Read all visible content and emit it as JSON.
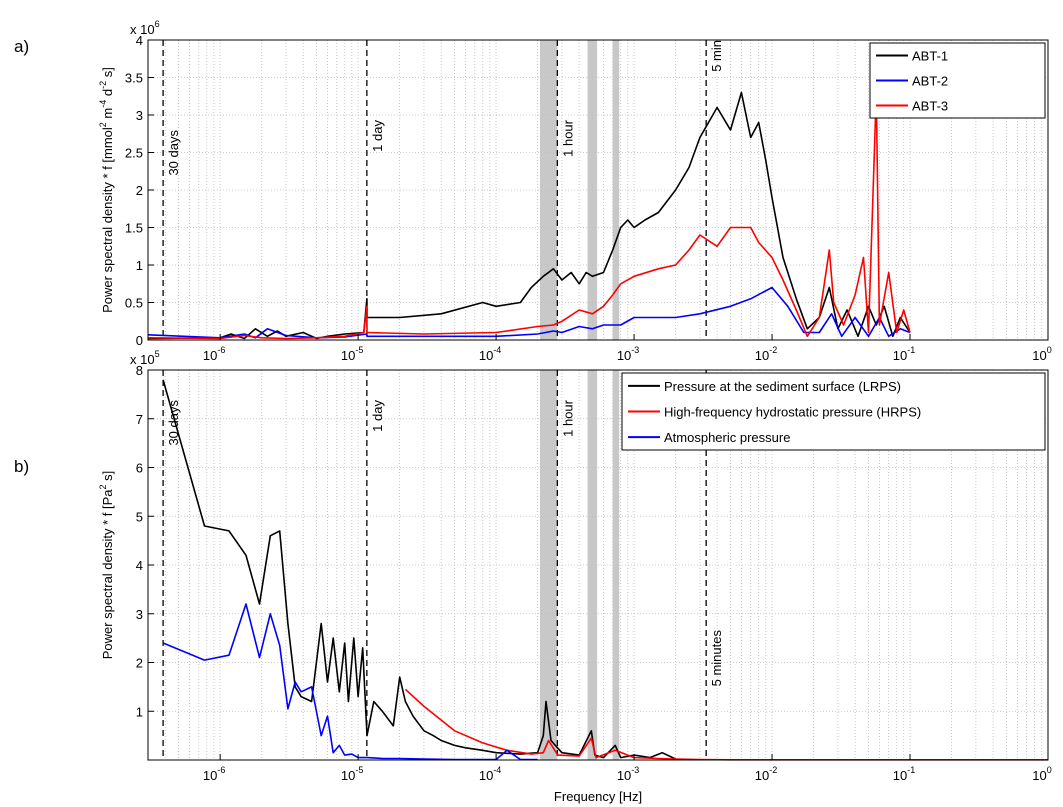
{
  "panel_labels": [
    "a)",
    "b)"
  ],
  "chart_data": [
    {
      "type": "line",
      "panel": "a)",
      "ylabel_main": "Power spectral density * f [mmol",
      "ylabel_parts": [
        {
          "t": "Power spectral density * f [mmol",
          "sup": false
        },
        {
          "t": "2",
          "sup": true
        },
        {
          "t": " m",
          "sup": false
        },
        {
          "t": "-4",
          "sup": true
        },
        {
          "t": " d",
          "sup": false
        },
        {
          "t": "-2",
          "sup": true
        },
        {
          "t": " s]",
          "sup": false
        }
      ],
      "xlabel": "",
      "x_scale": "log",
      "xlim": [
        3e-07,
        1
      ],
      "ylim": [
        0,
        4000000
      ],
      "y_multiplier": "x 10",
      "y_multiplier_exp": "6",
      "y_ticks": [
        0,
        0.5,
        1,
        1.5,
        2,
        2.5,
        3,
        3.5,
        4
      ],
      "x_tick_exps": [
        "-6",
        "-5",
        "-4",
        "-3",
        "-2",
        "-1",
        "0"
      ],
      "grid": true,
      "legend_position": "top-right",
      "shaded_bands": [
        [
          0.000208,
          0.000278
        ],
        [
          0.00046,
          0.00054
        ],
        [
          0.0007,
          0.00078
        ]
      ],
      "annotations": [
        {
          "label": "30 days",
          "x": 3.86e-07
        },
        {
          "label": "1 day",
          "x": 1.157e-05
        },
        {
          "label": "1 hour",
          "x": 0.000278
        },
        {
          "label": "5 min",
          "x": 0.00333
        }
      ],
      "series": [
        {
          "name": "ABT-1",
          "color": "#000000",
          "x": [
            3e-07,
            1e-06,
            1.2e-06,
            1.5e-06,
            1.8e-06,
            2.2e-06,
            2.6e-06,
            3e-06,
            4e-06,
            5e-06,
            6e-06,
            8e-06,
            1.1e-05,
            1.157e-05,
            1.16e-05,
            2e-05,
            4e-05,
            8e-05,
            0.0001,
            0.00015,
            0.00018,
            0.00022,
            0.00026,
            0.0003,
            0.00035,
            0.0004,
            0.00045,
            0.0005,
            0.0006,
            0.0007,
            0.0008,
            0.0009,
            0.001,
            0.0012,
            0.0015,
            0.002,
            0.0025,
            0.003,
            0.004,
            0.005,
            0.006,
            0.007,
            0.008,
            0.009,
            0.01,
            0.012,
            0.015,
            0.018,
            0.022,
            0.026,
            0.03,
            0.035,
            0.042,
            0.05,
            0.057,
            0.065,
            0.075,
            0.085,
            0.1
          ],
          "y": [
            0.02,
            0.03,
            0.08,
            0.02,
            0.15,
            0.05,
            0.12,
            0.05,
            0.1,
            0.02,
            0.05,
            0.08,
            0.1,
            0.55,
            0.3,
            0.3,
            0.35,
            0.5,
            0.45,
            0.5,
            0.7,
            0.85,
            0.95,
            0.8,
            0.9,
            0.75,
            0.9,
            0.85,
            0.9,
            1.2,
            1.5,
            1.6,
            1.5,
            1.6,
            1.7,
            2.0,
            2.3,
            2.7,
            3.1,
            2.8,
            3.3,
            2.7,
            2.9,
            2.4,
            1.9,
            1.1,
            0.55,
            0.15,
            0.3,
            0.7,
            0.15,
            0.4,
            0.05,
            0.45,
            0.2,
            0.45,
            0.05,
            0.3,
            0.1
          ]
        },
        {
          "name": "ABT-2",
          "color": "#0000ff",
          "x": [
            3e-07,
            1e-06,
            1.5e-06,
            1.8e-06,
            2.2e-06,
            3e-06,
            5e-06,
            8e-06,
            1.157e-05,
            1.16e-05,
            5e-05,
            0.0001,
            0.0002,
            0.00026,
            0.0003,
            0.0004,
            0.0005,
            0.0006,
            0.0008,
            0.001,
            0.0015,
            0.002,
            0.003,
            0.005,
            0.007,
            0.01,
            0.013,
            0.017,
            0.022,
            0.027,
            0.032,
            0.04,
            0.05,
            0.06,
            0.07,
            0.085,
            0.1
          ],
          "y": [
            0.07,
            0.03,
            0.08,
            0.03,
            0.15,
            0.06,
            0.03,
            0.04,
            0.08,
            0.05,
            0.05,
            0.05,
            0.08,
            0.12,
            0.1,
            0.18,
            0.15,
            0.2,
            0.2,
            0.3,
            0.3,
            0.3,
            0.35,
            0.45,
            0.55,
            0.7,
            0.45,
            0.1,
            0.1,
            0.35,
            0.05,
            0.3,
            0.05,
            0.3,
            0.05,
            0.15,
            0.1
          ]
        },
        {
          "name": "ABT-3",
          "color": "#ff0000",
          "x": [
            3e-07,
            1e-06,
            1.5e-06,
            2e-06,
            3e-06,
            5e-06,
            8e-06,
            1.1e-05,
            1.157e-05,
            1.16e-05,
            3e-05,
            0.0001,
            0.0002,
            0.00026,
            0.0003,
            0.0004,
            0.0005,
            0.0006,
            0.0007,
            0.0008,
            0.001,
            0.0015,
            0.002,
            0.0025,
            0.003,
            0.004,
            0.005,
            0.007,
            0.008,
            0.01,
            0.012,
            0.015,
            0.018,
            0.022,
            0.026,
            0.028,
            0.033,
            0.04,
            0.046,
            0.05,
            0.057,
            0.06,
            0.07,
            0.08,
            0.09,
            0.1
          ],
          "y": [
            0.03,
            0.02,
            0.06,
            0.03,
            0.02,
            0.03,
            0.05,
            0.1,
            0.45,
            0.1,
            0.08,
            0.1,
            0.18,
            0.2,
            0.25,
            0.4,
            0.35,
            0.45,
            0.6,
            0.75,
            0.85,
            0.95,
            1.0,
            1.2,
            1.4,
            1.25,
            1.5,
            1.5,
            1.3,
            1.1,
            0.8,
            0.4,
            0.05,
            0.3,
            1.2,
            0.5,
            0.2,
            0.6,
            1.1,
            0.1,
            3.3,
            0.2,
            0.9,
            0.1,
            0.4,
            0.1
          ]
        }
      ]
    },
    {
      "type": "line",
      "panel": "b)",
      "ylabel_parts": [
        {
          "t": "Power spectral density * f [Pa",
          "sup": false
        },
        {
          "t": "2",
          "sup": true
        },
        {
          "t": " s]",
          "sup": false
        }
      ],
      "xlabel": "Frequency [Hz]",
      "x_scale": "log",
      "xlim": [
        3e-07,
        1
      ],
      "ylim": [
        0,
        800000
      ],
      "y_multiplier": "x 10",
      "y_multiplier_exp": "5",
      "y_ticks": [
        1,
        2,
        3,
        4,
        5,
        6,
        7,
        8
      ],
      "x_tick_exps": [
        "-6",
        "-5",
        "-4",
        "-3",
        "-2",
        "-1",
        "0"
      ],
      "grid": true,
      "legend_position": "top-right",
      "shaded_bands": [
        [
          0.000208,
          0.000278
        ],
        [
          0.00046,
          0.00054
        ],
        [
          0.0007,
          0.00078
        ]
      ],
      "annotations": [
        {
          "label": "30 days",
          "x": 3.86e-07
        },
        {
          "label": "1 day",
          "x": 1.157e-05
        },
        {
          "label": "1 hour",
          "x": 0.000278
        },
        {
          "label": "5 minutes",
          "x": 0.00333
        }
      ],
      "series": [
        {
          "name": "Pressure at the sediment surface (LRPS)",
          "color": "#000000",
          "x": [
            3.86e-07,
            7.7e-07,
            1.16e-06,
            1.54e-06,
            1.93e-06,
            2.31e-06,
            2.7e-06,
            3.1e-06,
            3.5e-06,
            3.86e-06,
            4.6e-06,
            5.4e-06,
            6e-06,
            6.6e-06,
            7.3e-06,
            8e-06,
            8.5e-06,
            9.3e-06,
            1e-05,
            1.08e-05,
            1.16e-05,
            1.3e-05,
            1.5e-05,
            1.8e-05,
            2e-05,
            2.2e-05,
            2.5e-05,
            3e-05,
            3.5e-05,
            4e-05,
            5e-05,
            6e-05,
            8e-05,
            0.0001,
            0.00015,
            0.0002,
            0.00022,
            0.00023,
            0.00025,
            0.0003,
            0.0004,
            0.00049,
            0.00052,
            0.0006,
            0.00073,
            0.0008,
            0.001,
            0.0013,
            0.0016,
            0.002
          ],
          "y": [
            7.8,
            4.8,
            4.7,
            4.2,
            3.2,
            4.6,
            4.7,
            2.8,
            1.5,
            1.3,
            1.2,
            2.8,
            1.6,
            2.5,
            1.4,
            2.4,
            1.2,
            2.5,
            1.3,
            2.3,
            0.5,
            1.2,
            1.0,
            0.7,
            1.7,
            1.2,
            0.9,
            0.6,
            0.5,
            0.4,
            0.3,
            0.25,
            0.2,
            0.15,
            0.12,
            0.15,
            0.5,
            1.2,
            0.4,
            0.15,
            0.1,
            0.6,
            0.1,
            0.05,
            0.3,
            0.05,
            0.1,
            0.05,
            0.15,
            0.02
          ]
        },
        {
          "name": "High-frequency hydrostatic pressure (HRPS)",
          "color": "#ff0000",
          "x": [
            2.2e-05,
            3e-05,
            5e-05,
            8e-05,
            0.00012,
            0.00018,
            0.00022,
            0.00024,
            0.00028,
            0.0004,
            0.00049,
            0.00053,
            0.00073,
            0.001,
            0.0015,
            0.002,
            0.003,
            0.005,
            0.01,
            0.03,
            0.1,
            1
          ],
          "y": [
            1.45,
            1.1,
            0.6,
            0.35,
            0.2,
            0.12,
            0.15,
            0.4,
            0.1,
            0.08,
            0.45,
            0.05,
            0.2,
            0.05,
            0.03,
            0.02,
            0.01,
            0.005,
            0.005,
            0.005,
            0.005,
            0.005
          ]
        },
        {
          "name": "Atmospheric pressure",
          "color": "#0000ff",
          "x": [
            3.86e-07,
            7.7e-07,
            1.16e-06,
            1.54e-06,
            1.93e-06,
            2.31e-06,
            2.7e-06,
            3.1e-06,
            3.5e-06,
            3.86e-06,
            4.6e-06,
            5.4e-06,
            6e-06,
            6.6e-06,
            7.3e-06,
            8e-06,
            9e-06,
            1e-05,
            1.16e-05,
            1.5e-05,
            2e-05,
            3e-05,
            5e-05,
            0.0001,
            0.00012,
            0.00015,
            0.0002
          ],
          "y": [
            2.4,
            2.05,
            2.15,
            3.2,
            2.1,
            3.0,
            2.35,
            1.05,
            1.6,
            1.4,
            1.5,
            0.5,
            0.9,
            0.15,
            0.3,
            0.1,
            0.12,
            0.05,
            0.05,
            0.03,
            0.03,
            0.02,
            0.01,
            0.01,
            0.2,
            0.01,
            0.01
          ]
        }
      ]
    }
  ]
}
